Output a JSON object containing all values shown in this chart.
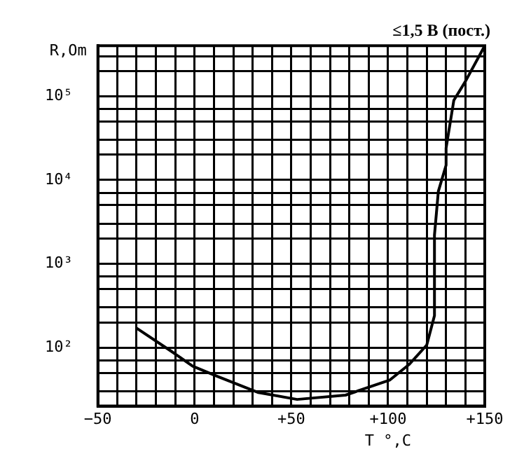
{
  "chart_data": {
    "type": "line",
    "title": "≤1,5 В (пост.)",
    "xlabel": "T °,C",
    "ylabel": "R,Om",
    "log": "y",
    "grid": true,
    "legend": false,
    "marker": "none",
    "line_style": "solid",
    "xlim": [
      -50,
      150
    ],
    "ylim": [
      20,
      400000
    ],
    "xticks": [
      {
        "value": -50,
        "label": "−50"
      },
      {
        "value": -40,
        "label": null
      },
      {
        "value": -30,
        "label": null
      },
      {
        "value": -20,
        "label": null
      },
      {
        "value": -10,
        "label": null
      },
      {
        "value": 0,
        "label": "0"
      },
      {
        "value": 10,
        "label": null
      },
      {
        "value": 20,
        "label": null
      },
      {
        "value": 30,
        "label": null
      },
      {
        "value": 40,
        "label": null
      },
      {
        "value": 50,
        "label": "+50"
      },
      {
        "value": 60,
        "label": null
      },
      {
        "value": 70,
        "label": null
      },
      {
        "value": 80,
        "label": null
      },
      {
        "value": 90,
        "label": null
      },
      {
        "value": 100,
        "label": "+100"
      },
      {
        "value": 110,
        "label": null
      },
      {
        "value": 120,
        "label": null
      },
      {
        "value": 130,
        "label": null
      },
      {
        "value": 140,
        "label": null
      },
      {
        "value": 150,
        "label": "+150"
      }
    ],
    "yticks": [
      {
        "value": 30,
        "label": null
      },
      {
        "value": 50,
        "label": null
      },
      {
        "value": 70,
        "label": null
      },
      {
        "value": 100,
        "label": "10²"
      },
      {
        "value": 200,
        "label": null
      },
      {
        "value": 300,
        "label": null
      },
      {
        "value": 500,
        "label": null
      },
      {
        "value": 700,
        "label": null
      },
      {
        "value": 1000,
        "label": "10³"
      },
      {
        "value": 2000,
        "label": null
      },
      {
        "value": 3000,
        "label": null
      },
      {
        "value": 5000,
        "label": null
      },
      {
        "value": 7000,
        "label": null
      },
      {
        "value": 10000,
        "label": "10⁴"
      },
      {
        "value": 20000,
        "label": null
      },
      {
        "value": 30000,
        "label": null
      },
      {
        "value": 50000,
        "label": null
      },
      {
        "value": 70000,
        "label": null
      },
      {
        "value": 100000,
        "label": "10⁵"
      },
      {
        "value": 200000,
        "label": null
      },
      {
        "value": 300000,
        "label": null
      }
    ],
    "series": [
      {
        "color": "#000000",
        "x": [
          -30,
          -12,
          -1,
          11,
          33,
          53,
          78,
          101,
          111,
          120,
          124,
          124,
          126,
          130,
          130,
          134,
          140,
          150
        ],
        "values": [
          170,
          90,
          60,
          46,
          29,
          24,
          27,
          41,
          63,
          107,
          240,
          2200,
          7300,
          15000,
          24000,
          89000,
          150000,
          400000
        ]
      }
    ]
  }
}
